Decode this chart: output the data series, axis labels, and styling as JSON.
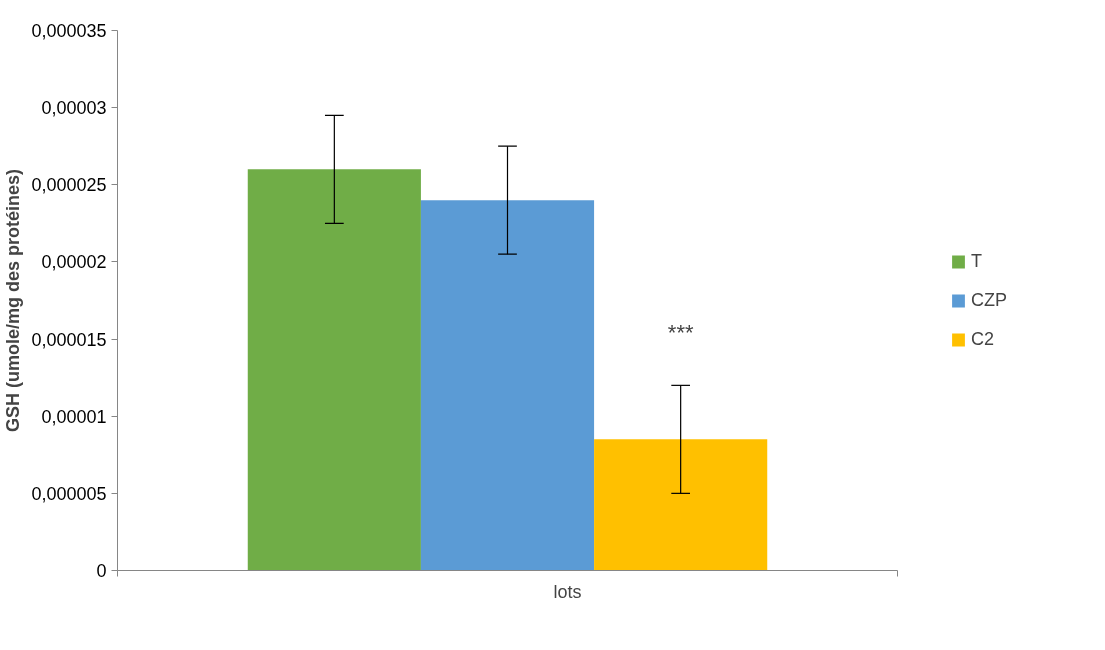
{
  "chart_data": {
    "type": "bar",
    "xlabel": "lots",
    "ylabel": "GSH (umole/mg des protéines)",
    "categories": [
      null
    ],
    "series": [
      {
        "name": "T",
        "color": "#70ad47",
        "values": [
          2.6e-05
        ],
        "errors": [
          3.5e-06
        ]
      },
      {
        "name": "CZP",
        "color": "#5b9bd5",
        "values": [
          2.4e-05
        ],
        "errors": [
          3.5e-06
        ]
      },
      {
        "name": "C2",
        "color": "#ffc000",
        "values": [
          8.5e-06
        ],
        "errors": [
          3.5e-06
        ]
      }
    ],
    "ylim": [
      0,
      3.5e-05
    ],
    "yticks": [
      0,
      {
        "value": 5e-06,
        "label": "0,000005"
      },
      {
        "value": 1e-05,
        "label": "0,00001"
      },
      {
        "value": 1.5e-05,
        "label": "0,000015"
      },
      {
        "value": 2e-05,
        "label": "0,00002"
      },
      {
        "value": 2.5e-05,
        "label": "0,000025"
      },
      {
        "value": 3e-05,
        "label": "0,00003"
      },
      {
        "value": 3.5e-05,
        "label": "0,000035"
      }
    ],
    "annotations": [
      "***"
    ],
    "grid": false,
    "legend": "right"
  }
}
